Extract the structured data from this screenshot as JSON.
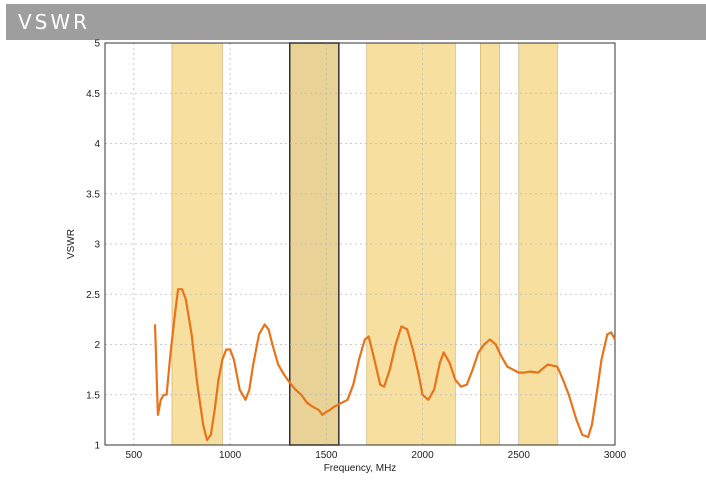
{
  "header": {
    "title": "VSWR"
  },
  "chart_data": {
    "type": "line",
    "title": "",
    "xlabel": "Frequency, MHz",
    "ylabel": "VSWR",
    "xlim": [
      350,
      3000
    ],
    "ylim": [
      1,
      5
    ],
    "grid": true,
    "x_ticks": [
      500,
      1000,
      1500,
      2000,
      2500,
      3000
    ],
    "y_ticks": [
      1,
      1.5,
      2,
      2.5,
      3,
      3.5,
      4,
      4.5,
      5
    ],
    "line_color": "#e8731a",
    "band_color": "#f7dfa0",
    "highlight_band_color": "#e9d296",
    "bands": [
      {
        "from": 698,
        "to": 960,
        "highlighted": false
      },
      {
        "from": 1310,
        "to": 1565,
        "highlighted": true
      },
      {
        "from": 1710,
        "to": 2170,
        "highlighted": false
      },
      {
        "from": 2300,
        "to": 2400,
        "highlighted": false
      },
      {
        "from": 2500,
        "to": 2700,
        "highlighted": false
      }
    ],
    "series": [
      {
        "x": [
          610,
          625,
          640,
          655,
          670,
          690,
          710,
          730,
          750,
          770,
          800,
          830,
          860,
          880,
          900,
          920,
          940,
          960,
          980,
          1000,
          1020,
          1050,
          1080,
          1100,
          1120,
          1150,
          1180,
          1200,
          1220,
          1250,
          1280,
          1310,
          1340,
          1370,
          1400,
          1430,
          1460,
          1480,
          1500,
          1520,
          1540,
          1560,
          1580,
          1610,
          1640,
          1670,
          1700,
          1720,
          1750,
          1780,
          1800,
          1830,
          1860,
          1890,
          1920,
          1950,
          1980,
          2000,
          2030,
          2060,
          2090,
          2110,
          2140,
          2170,
          2200,
          2230,
          2260,
          2290,
          2320,
          2350,
          2380,
          2410,
          2440,
          2470,
          2500,
          2530,
          2560,
          2600,
          2650,
          2700,
          2730,
          2760,
          2800,
          2830,
          2860,
          2880,
          2900,
          2930,
          2960,
          2980,
          3000
        ],
        "y": [
          2.2,
          1.3,
          1.45,
          1.5,
          1.5,
          1.9,
          2.25,
          2.55,
          2.55,
          2.45,
          2.1,
          1.6,
          1.2,
          1.05,
          1.1,
          1.35,
          1.65,
          1.85,
          1.95,
          1.95,
          1.85,
          1.55,
          1.45,
          1.55,
          1.8,
          2.1,
          2.2,
          2.15,
          2.0,
          1.8,
          1.7,
          1.62,
          1.55,
          1.5,
          1.42,
          1.38,
          1.35,
          1.3,
          1.33,
          1.35,
          1.38,
          1.4,
          1.42,
          1.45,
          1.6,
          1.85,
          2.05,
          2.08,
          1.85,
          1.6,
          1.58,
          1.75,
          2.0,
          2.18,
          2.15,
          1.95,
          1.7,
          1.5,
          1.45,
          1.55,
          1.82,
          1.92,
          1.82,
          1.65,
          1.58,
          1.6,
          1.75,
          1.92,
          2.0,
          2.05,
          2.0,
          1.88,
          1.78,
          1.75,
          1.72,
          1.72,
          1.73,
          1.72,
          1.8,
          1.78,
          1.65,
          1.5,
          1.25,
          1.1,
          1.08,
          1.2,
          1.45,
          1.85,
          2.1,
          2.12,
          2.05
        ]
      }
    ]
  }
}
